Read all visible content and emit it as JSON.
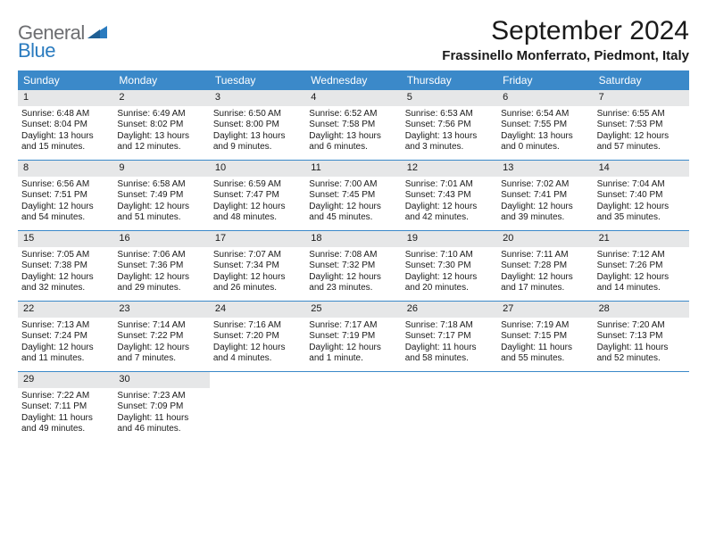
{
  "logo": {
    "text1": "General",
    "text2": "Blue"
  },
  "title": "September 2024",
  "location": "Frassinello Monferrato, Piedmont, Italy",
  "colors": {
    "header_bg": "#3b89c9",
    "header_text": "#ffffff",
    "daynum_bg": "#e6e7e8",
    "row_border": "#3b89c9",
    "body_text": "#1a1a1a",
    "logo_gray": "#6d6e71",
    "logo_blue": "#2a7bbf",
    "background": "#ffffff"
  },
  "typography": {
    "title_fontsize": 30,
    "location_fontsize": 15,
    "dayname_fontsize": 12,
    "daynum_fontsize": 11,
    "cell_fontsize": 10,
    "logo_fontsize": 22
  },
  "layout": {
    "columns": 7,
    "rows": 5,
    "cell_min_height": 78
  },
  "daynames": [
    "Sunday",
    "Monday",
    "Tuesday",
    "Wednesday",
    "Thursday",
    "Friday",
    "Saturday"
  ],
  "weeks": [
    [
      {
        "n": "1",
        "sr": "Sunrise: 6:48 AM",
        "ss": "Sunset: 8:04 PM",
        "d1": "Daylight: 13 hours",
        "d2": "and 15 minutes."
      },
      {
        "n": "2",
        "sr": "Sunrise: 6:49 AM",
        "ss": "Sunset: 8:02 PM",
        "d1": "Daylight: 13 hours",
        "d2": "and 12 minutes."
      },
      {
        "n": "3",
        "sr": "Sunrise: 6:50 AM",
        "ss": "Sunset: 8:00 PM",
        "d1": "Daylight: 13 hours",
        "d2": "and 9 minutes."
      },
      {
        "n": "4",
        "sr": "Sunrise: 6:52 AM",
        "ss": "Sunset: 7:58 PM",
        "d1": "Daylight: 13 hours",
        "d2": "and 6 minutes."
      },
      {
        "n": "5",
        "sr": "Sunrise: 6:53 AM",
        "ss": "Sunset: 7:56 PM",
        "d1": "Daylight: 13 hours",
        "d2": "and 3 minutes."
      },
      {
        "n": "6",
        "sr": "Sunrise: 6:54 AM",
        "ss": "Sunset: 7:55 PM",
        "d1": "Daylight: 13 hours",
        "d2": "and 0 minutes."
      },
      {
        "n": "7",
        "sr": "Sunrise: 6:55 AM",
        "ss": "Sunset: 7:53 PM",
        "d1": "Daylight: 12 hours",
        "d2": "and 57 minutes."
      }
    ],
    [
      {
        "n": "8",
        "sr": "Sunrise: 6:56 AM",
        "ss": "Sunset: 7:51 PM",
        "d1": "Daylight: 12 hours",
        "d2": "and 54 minutes."
      },
      {
        "n": "9",
        "sr": "Sunrise: 6:58 AM",
        "ss": "Sunset: 7:49 PM",
        "d1": "Daylight: 12 hours",
        "d2": "and 51 minutes."
      },
      {
        "n": "10",
        "sr": "Sunrise: 6:59 AM",
        "ss": "Sunset: 7:47 PM",
        "d1": "Daylight: 12 hours",
        "d2": "and 48 minutes."
      },
      {
        "n": "11",
        "sr": "Sunrise: 7:00 AM",
        "ss": "Sunset: 7:45 PM",
        "d1": "Daylight: 12 hours",
        "d2": "and 45 minutes."
      },
      {
        "n": "12",
        "sr": "Sunrise: 7:01 AM",
        "ss": "Sunset: 7:43 PM",
        "d1": "Daylight: 12 hours",
        "d2": "and 42 minutes."
      },
      {
        "n": "13",
        "sr": "Sunrise: 7:02 AM",
        "ss": "Sunset: 7:41 PM",
        "d1": "Daylight: 12 hours",
        "d2": "and 39 minutes."
      },
      {
        "n": "14",
        "sr": "Sunrise: 7:04 AM",
        "ss": "Sunset: 7:40 PM",
        "d1": "Daylight: 12 hours",
        "d2": "and 35 minutes."
      }
    ],
    [
      {
        "n": "15",
        "sr": "Sunrise: 7:05 AM",
        "ss": "Sunset: 7:38 PM",
        "d1": "Daylight: 12 hours",
        "d2": "and 32 minutes."
      },
      {
        "n": "16",
        "sr": "Sunrise: 7:06 AM",
        "ss": "Sunset: 7:36 PM",
        "d1": "Daylight: 12 hours",
        "d2": "and 29 minutes."
      },
      {
        "n": "17",
        "sr": "Sunrise: 7:07 AM",
        "ss": "Sunset: 7:34 PM",
        "d1": "Daylight: 12 hours",
        "d2": "and 26 minutes."
      },
      {
        "n": "18",
        "sr": "Sunrise: 7:08 AM",
        "ss": "Sunset: 7:32 PM",
        "d1": "Daylight: 12 hours",
        "d2": "and 23 minutes."
      },
      {
        "n": "19",
        "sr": "Sunrise: 7:10 AM",
        "ss": "Sunset: 7:30 PM",
        "d1": "Daylight: 12 hours",
        "d2": "and 20 minutes."
      },
      {
        "n": "20",
        "sr": "Sunrise: 7:11 AM",
        "ss": "Sunset: 7:28 PM",
        "d1": "Daylight: 12 hours",
        "d2": "and 17 minutes."
      },
      {
        "n": "21",
        "sr": "Sunrise: 7:12 AM",
        "ss": "Sunset: 7:26 PM",
        "d1": "Daylight: 12 hours",
        "d2": "and 14 minutes."
      }
    ],
    [
      {
        "n": "22",
        "sr": "Sunrise: 7:13 AM",
        "ss": "Sunset: 7:24 PM",
        "d1": "Daylight: 12 hours",
        "d2": "and 11 minutes."
      },
      {
        "n": "23",
        "sr": "Sunrise: 7:14 AM",
        "ss": "Sunset: 7:22 PM",
        "d1": "Daylight: 12 hours",
        "d2": "and 7 minutes."
      },
      {
        "n": "24",
        "sr": "Sunrise: 7:16 AM",
        "ss": "Sunset: 7:20 PM",
        "d1": "Daylight: 12 hours",
        "d2": "and 4 minutes."
      },
      {
        "n": "25",
        "sr": "Sunrise: 7:17 AM",
        "ss": "Sunset: 7:19 PM",
        "d1": "Daylight: 12 hours",
        "d2": "and 1 minute."
      },
      {
        "n": "26",
        "sr": "Sunrise: 7:18 AM",
        "ss": "Sunset: 7:17 PM",
        "d1": "Daylight: 11 hours",
        "d2": "and 58 minutes."
      },
      {
        "n": "27",
        "sr": "Sunrise: 7:19 AM",
        "ss": "Sunset: 7:15 PM",
        "d1": "Daylight: 11 hours",
        "d2": "and 55 minutes."
      },
      {
        "n": "28",
        "sr": "Sunrise: 7:20 AM",
        "ss": "Sunset: 7:13 PM",
        "d1": "Daylight: 11 hours",
        "d2": "and 52 minutes."
      }
    ],
    [
      {
        "n": "29",
        "sr": "Sunrise: 7:22 AM",
        "ss": "Sunset: 7:11 PM",
        "d1": "Daylight: 11 hours",
        "d2": "and 49 minutes."
      },
      {
        "n": "30",
        "sr": "Sunrise: 7:23 AM",
        "ss": "Sunset: 7:09 PM",
        "d1": "Daylight: 11 hours",
        "d2": "and 46 minutes."
      },
      null,
      null,
      null,
      null,
      null
    ]
  ]
}
